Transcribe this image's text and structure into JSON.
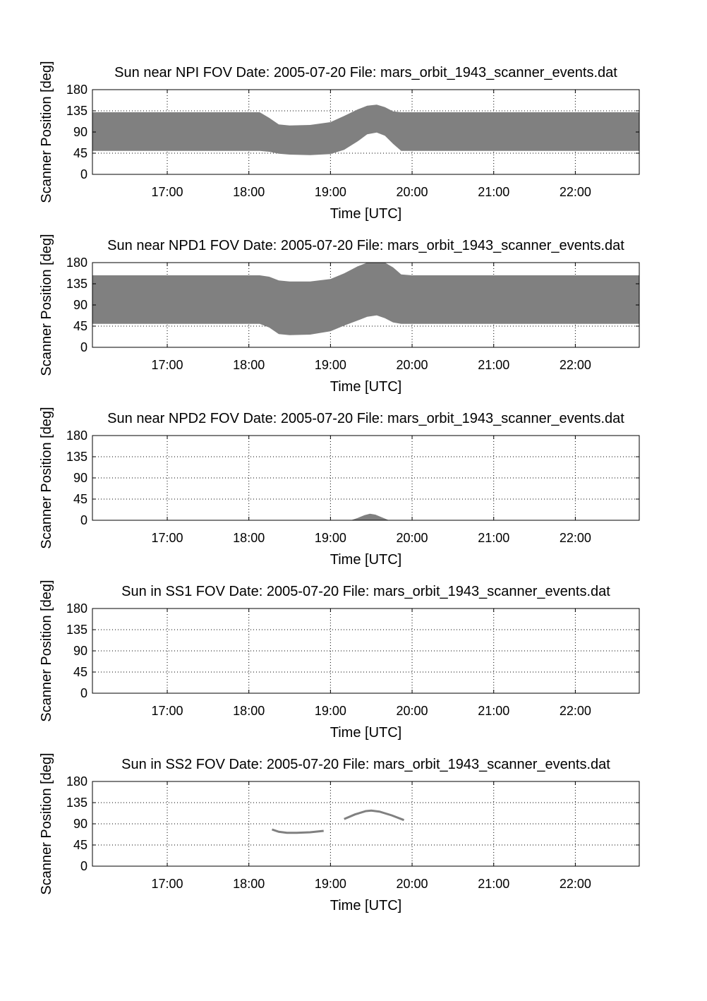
{
  "chart_data": [
    {
      "type": "area",
      "title": "Sun near NPI FOV   Date: 2005-07-20   File: mars_orbit_1943_scanner_events.dat",
      "xlabel": "Time [UTC]",
      "ylabel": "Scanner Position [deg]",
      "xlim": [
        "16:05",
        "22:47"
      ],
      "ylim": [
        0,
        180
      ],
      "x_ticks": [
        "17:00",
        "18:00",
        "19:00",
        "20:00",
        "21:00",
        "22:00"
      ],
      "y_ticks": [
        0,
        45,
        90,
        135,
        180
      ],
      "grid": true,
      "color": "#808080",
      "x": [
        "16:05",
        "18:08",
        "18:15",
        "18:22",
        "18:30",
        "18:45",
        "19:00",
        "19:10",
        "19:20",
        "19:27",
        "19:34",
        "19:40",
        "19:46",
        "19:52",
        "20:00",
        "22:47"
      ],
      "upper": [
        132,
        132,
        120,
        106,
        104,
        105,
        111,
        124,
        138,
        146,
        148,
        143,
        134,
        132,
        132,
        132
      ],
      "lower": [
        50,
        50,
        48,
        44,
        42,
        41,
        43,
        52,
        70,
        85,
        89,
        82,
        65,
        50,
        50,
        50
      ]
    },
    {
      "type": "area",
      "title": "Sun near NPD1 FOV   Date: 2005-07-20   File: mars_orbit_1943_scanner_events.dat",
      "xlabel": "Time [UTC]",
      "ylabel": "Scanner Position [deg]",
      "xlim": [
        "16:05",
        "22:47"
      ],
      "ylim": [
        0,
        180
      ],
      "x_ticks": [
        "17:00",
        "18:00",
        "19:00",
        "20:00",
        "21:00",
        "22:00"
      ],
      "y_ticks": [
        0,
        45,
        90,
        135,
        180
      ],
      "grid": true,
      "color": "#808080",
      "x": [
        "16:05",
        "18:08",
        "18:15",
        "18:22",
        "18:30",
        "18:45",
        "19:00",
        "19:10",
        "19:20",
        "19:27",
        "19:34",
        "19:40",
        "19:46",
        "19:52",
        "20:00",
        "22:47"
      ],
      "upper": [
        153,
        153,
        150,
        142,
        140,
        140,
        145,
        157,
        172,
        180,
        180,
        180,
        170,
        155,
        153,
        153
      ],
      "lower": [
        50,
        50,
        42,
        28,
        26,
        27,
        34,
        46,
        57,
        65,
        68,
        62,
        53,
        50,
        50,
        50
      ]
    },
    {
      "type": "area",
      "title": "Sun near NPD2 FOV   Date: 2005-07-20   File: mars_orbit_1943_scanner_events.dat",
      "xlabel": "Time [UTC]",
      "ylabel": "Scanner Position [deg]",
      "xlim": [
        "16:05",
        "22:47"
      ],
      "ylim": [
        0,
        180
      ],
      "x_ticks": [
        "17:00",
        "18:00",
        "19:00",
        "20:00",
        "21:00",
        "22:00"
      ],
      "y_ticks": [
        0,
        45,
        90,
        135,
        180
      ],
      "grid": true,
      "color": "#808080",
      "x": [
        "19:15",
        "19:20",
        "19:25",
        "19:29",
        "19:33",
        "19:38",
        "19:43"
      ],
      "upper": [
        0,
        5,
        11,
        14,
        12,
        6,
        0
      ],
      "lower": [
        0,
        0,
        0,
        0,
        0,
        0,
        0
      ]
    },
    {
      "type": "area",
      "title": "Sun in SS1 FOV   Date: 2005-07-20   File: mars_orbit_1943_scanner_events.dat",
      "xlabel": "Time [UTC]",
      "ylabel": "Scanner Position [deg]",
      "xlim": [
        "16:05",
        "22:47"
      ],
      "ylim": [
        0,
        180
      ],
      "x_ticks": [
        "17:00",
        "18:00",
        "19:00",
        "20:00",
        "21:00",
        "22:00"
      ],
      "y_ticks": [
        0,
        45,
        90,
        135,
        180
      ],
      "grid": true,
      "color": "#808080",
      "x": [],
      "upper": [],
      "lower": []
    },
    {
      "type": "line",
      "title": "Sun in SS2 FOV   Date: 2005-07-20   File: mars_orbit_1943_scanner_events.dat",
      "xlabel": "Time [UTC]",
      "ylabel": "Scanner Position [deg]",
      "xlim": [
        "16:05",
        "22:47"
      ],
      "ylim": [
        0,
        180
      ],
      "x_ticks": [
        "17:00",
        "18:00",
        "19:00",
        "20:00",
        "21:00",
        "22:00"
      ],
      "y_ticks": [
        0,
        45,
        90,
        135,
        180
      ],
      "grid": true,
      "color": "#808080",
      "series": [
        {
          "x": [
            "18:17",
            "18:22",
            "18:28",
            "18:35",
            "18:45",
            "18:55"
          ],
          "y": [
            78,
            73,
            71,
            71,
            72,
            75
          ]
        },
        {
          "x": [
            "19:10",
            "19:18",
            "19:26",
            "19:30",
            "19:36",
            "19:45",
            "19:54"
          ],
          "y": [
            100,
            110,
            117,
            118,
            116,
            108,
            98
          ]
        }
      ]
    }
  ]
}
